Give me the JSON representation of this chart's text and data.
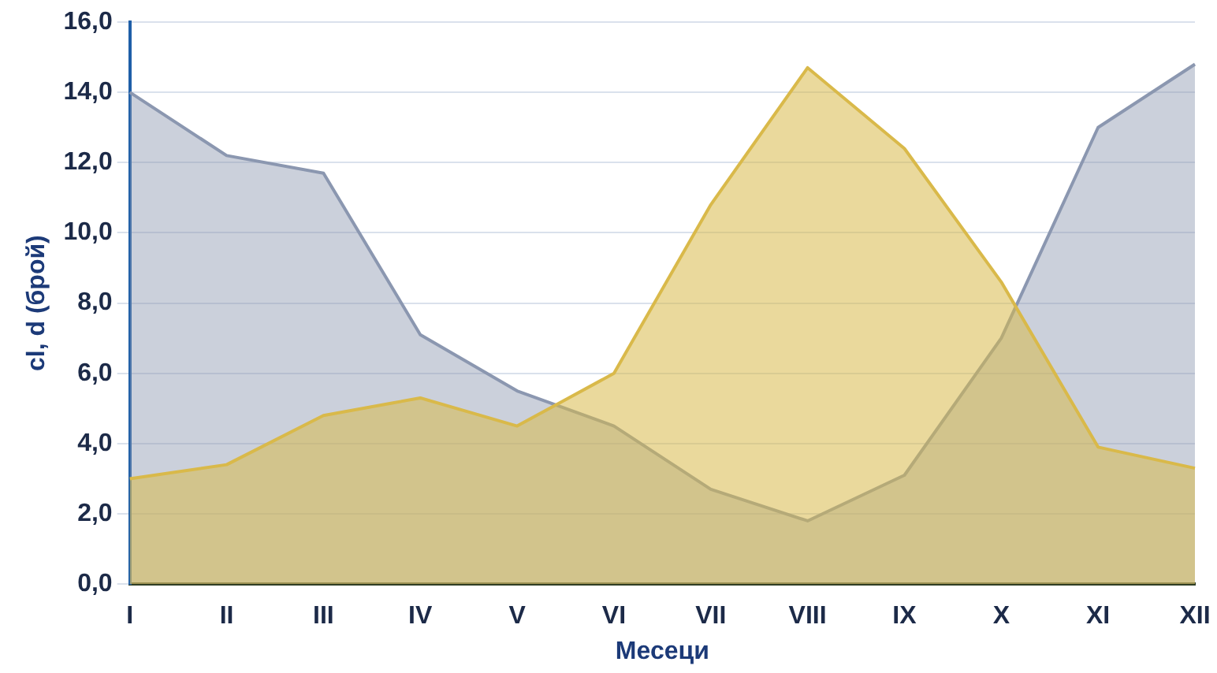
{
  "chart_data": {
    "type": "area",
    "xlabel": "Месеци",
    "ylabel": "cl, d (брой)",
    "categories": [
      "I",
      "II",
      "III",
      "IV",
      "V",
      "VI",
      "VII",
      "VIII",
      "IX",
      "X",
      "XI",
      "XII"
    ],
    "series": [
      {
        "color": "#8b97b0",
        "values": [
          14.0,
          12.2,
          11.7,
          7.1,
          5.5,
          4.5,
          2.7,
          1.8,
          3.1,
          7.0,
          13.0,
          14.8
        ]
      },
      {
        "color": "#d9b94a",
        "values": [
          3.0,
          3.4,
          4.8,
          5.3,
          4.5,
          6.0,
          10.8,
          14.7,
          12.4,
          8.6,
          3.9,
          3.3
        ]
      }
    ],
    "ylim": [
      0,
      16
    ],
    "yticks": [
      {
        "value": 0,
        "label": "0,0"
      },
      {
        "value": 2,
        "label": "2,0"
      },
      {
        "value": 4,
        "label": "4,0"
      },
      {
        "value": 6,
        "label": "6,0"
      },
      {
        "value": 8,
        "label": "8,0"
      },
      {
        "value": 10,
        "label": "10,0"
      },
      {
        "value": 12,
        "label": "12,0"
      },
      {
        "value": 14,
        "label": "14,0"
      },
      {
        "value": 16,
        "label": "16,0"
      }
    ],
    "grid": "y",
    "legend": false
  }
}
